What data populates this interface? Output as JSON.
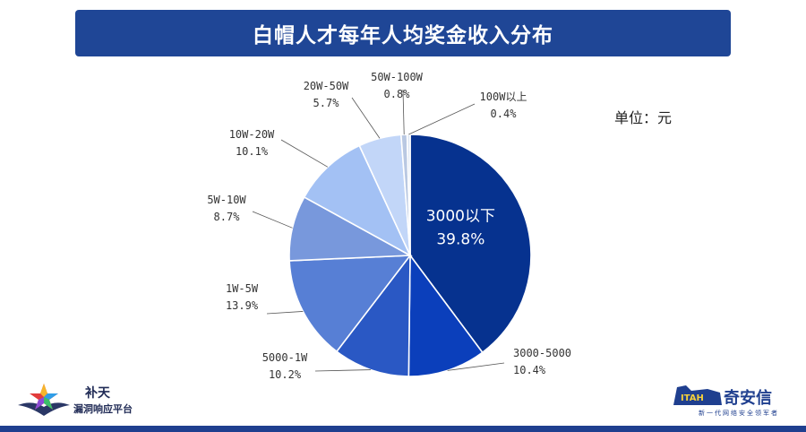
{
  "title": "白帽人才每年人均奖金收入分布",
  "unit_label": "单位：元",
  "logos": {
    "left_brand": "补天",
    "left_sub": "漏洞响应平台",
    "right_brand": "奇安信",
    "right_tag": "新一代网络安全领军者"
  },
  "chart_data": {
    "type": "pie",
    "title": "白帽人才每年人均奖金收入分布",
    "unit": "单位：元",
    "slices": [
      {
        "label": "3000以下",
        "value": 39.8,
        "pct_text": "39.8%",
        "color": "#06328f"
      },
      {
        "label": "3000-5000",
        "value": 10.4,
        "pct_text": "10.4%",
        "color": "#0b3fbb"
      },
      {
        "label": "5000-1W",
        "value": 10.2,
        "pct_text": "10.2%",
        "color": "#2a58c4"
      },
      {
        "label": "1W-5W",
        "value": 13.9,
        "pct_text": "13.9%",
        "color": "#577fd5"
      },
      {
        "label": "5W-10W",
        "value": 8.7,
        "pct_text": "8.7%",
        "color": "#7898dc"
      },
      {
        "label": "10W-20W",
        "value": 10.1,
        "pct_text": "10.1%",
        "color": "#a3c1f4"
      },
      {
        "label": "20W-50W",
        "value": 5.7,
        "pct_text": "5.7%",
        "color": "#c2d6f8"
      },
      {
        "label": "50W-100W",
        "value": 0.8,
        "pct_text": "0.8%",
        "color": "#b9c8e2"
      },
      {
        "label": "100W以上",
        "value": 0.4,
        "pct_text": "0.4%",
        "color": "#dde6f4"
      }
    ]
  }
}
